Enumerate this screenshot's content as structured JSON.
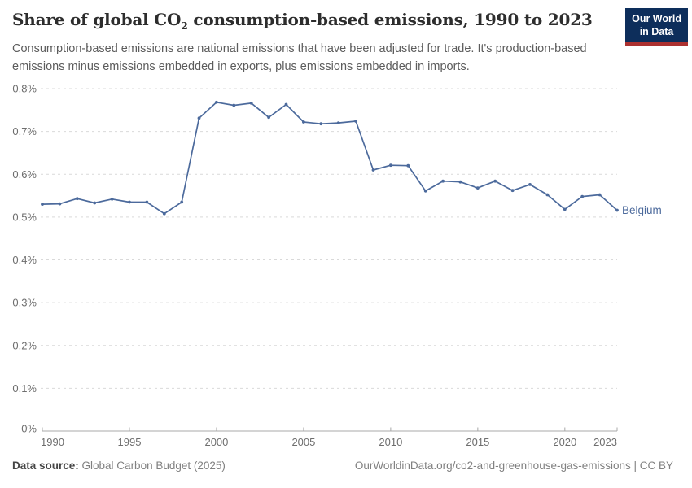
{
  "header": {
    "title_pre": "Share of global CO",
    "title_sub": "2",
    "title_post": " consumption-based emissions, 1990 to 2023",
    "subtitle": "Consumption-based emissions are national emissions that have been adjusted for trade. It's production-based emissions minus emissions embedded in exports, plus emissions embedded in imports."
  },
  "logo": {
    "line1": "Our World",
    "line2": "in Data",
    "bg_color": "#0D2E5B",
    "accent_color": "#AC3130"
  },
  "chart_data": {
    "type": "line",
    "title": "Share of global CO₂ consumption-based emissions, 1990 to 2023",
    "x": [
      1990,
      1991,
      1992,
      1993,
      1994,
      1995,
      1996,
      1997,
      1998,
      1999,
      2000,
      2001,
      2002,
      2003,
      2004,
      2005,
      2006,
      2007,
      2008,
      2009,
      2010,
      2011,
      2012,
      2013,
      2014,
      2015,
      2016,
      2017,
      2018,
      2019,
      2020,
      2021,
      2022,
      2023
    ],
    "series": [
      {
        "name": "Belgium",
        "color": "#4C6A9C",
        "values": [
          0.53,
          0.531,
          0.543,
          0.533,
          0.542,
          0.535,
          0.535,
          0.508,
          0.535,
          0.731,
          0.768,
          0.761,
          0.766,
          0.733,
          0.763,
          0.722,
          0.718,
          0.72,
          0.724,
          0.61,
          0.621,
          0.62,
          0.561,
          0.584,
          0.582,
          0.568,
          0.584,
          0.562,
          0.576,
          0.552,
          0.518,
          0.548,
          0.552,
          0.516
        ]
      }
    ],
    "entity_label": "Belgium",
    "x_ticks": [
      1990,
      1995,
      2000,
      2005,
      2010,
      2015,
      2020,
      2023
    ],
    "y_ticks": [
      0,
      0.1,
      0.2,
      0.3,
      0.4,
      0.5,
      0.6,
      0.7,
      0.8
    ],
    "y_tick_suffix": "%",
    "ylim": [
      0,
      0.8
    ],
    "xlabel": "",
    "ylabel": "",
    "grid": "horizontal-dashed",
    "legend_position": "end-of-line-label",
    "colors": {
      "gridline": "#d9d9d9",
      "axis": "#a8a8a8",
      "tick_label": "#6e6e6e"
    }
  },
  "footer": {
    "source_label": "Data source:",
    "source_value": " Global Carbon Budget (2025)",
    "link": "OurWorldinData.org/co2-and-greenhouse-gas-emissions | CC BY"
  }
}
